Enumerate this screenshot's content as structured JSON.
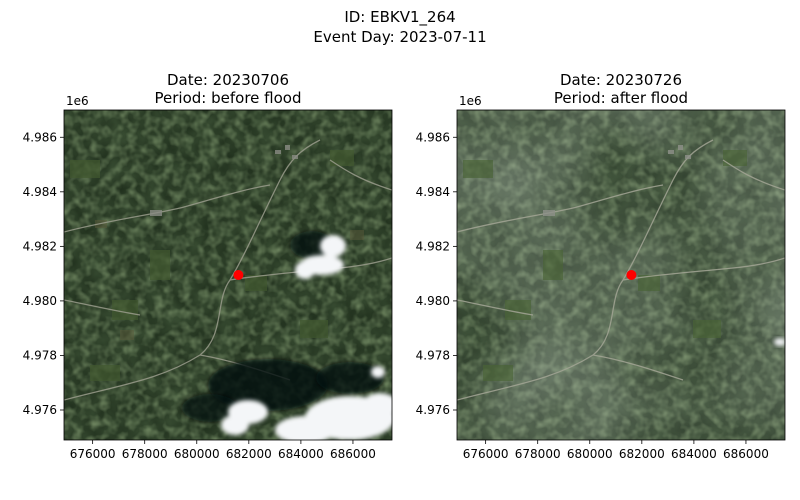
{
  "figure": {
    "title_line1": "ID: EBKV1_264",
    "title_line2": "Event Day: 2023-07-11"
  },
  "panels": [
    {
      "title_line1": "Date: 20230706",
      "title_line2": "Period: before flood",
      "y_offset_label": "1e6",
      "x_ticks": [
        "676000",
        "678000",
        "680000",
        "682000",
        "684000",
        "686000"
      ],
      "y_ticks": [
        "4.986",
        "4.984",
        "4.982",
        "4.980",
        "4.978",
        "4.976"
      ],
      "clouds": true
    },
    {
      "title_line1": "Date: 20230726",
      "title_line2": "Period: after flood",
      "y_offset_label": "1e6",
      "x_ticks": [
        "676000",
        "678000",
        "680000",
        "682000",
        "684000",
        "686000"
      ],
      "y_ticks": [
        "4.986",
        "4.984",
        "4.982",
        "4.980",
        "4.978",
        "4.976"
      ],
      "clouds": false
    }
  ],
  "marker": {
    "color": "#ff0000",
    "x": 681600,
    "y": 4980950
  },
  "colors": {
    "forest_dark": "#1b2a19",
    "forest_mid": "#2a3d24",
    "field_green": "#3f5a30",
    "road": "#a9a99a",
    "cloud": "#f4f6f8"
  },
  "axes": {
    "xlim": [
      674900,
      687500
    ],
    "ylim": [
      4974900,
      4987000
    ]
  }
}
